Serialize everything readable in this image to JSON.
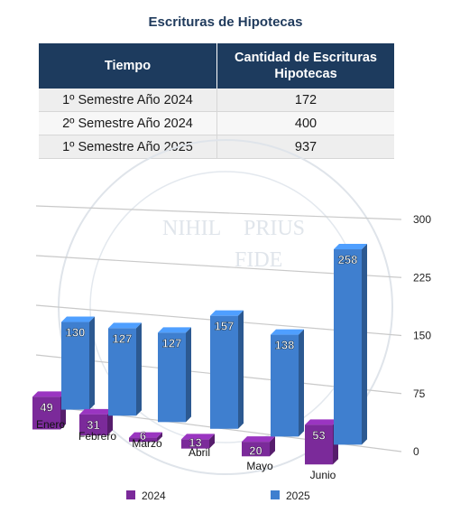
{
  "title": "Escrituras de Hipotecas",
  "table": {
    "headers": [
      "Tiempo",
      "Cantidad de Escrituras Hipotecas"
    ],
    "rows": [
      [
        "1º Semestre Año 2024",
        "172"
      ],
      [
        "2º Semestre Año 2024",
        "400"
      ],
      [
        "1º Semestre Año 2025",
        "937"
      ]
    ]
  },
  "watermark_text": [
    "NIHIL",
    "PRIUS",
    "FIDE"
  ],
  "chart_data": {
    "type": "bar",
    "categories": [
      "Enero",
      "Febrero",
      "Marzo",
      "Abril",
      "Mayo",
      "Junio"
    ],
    "series": [
      {
        "name": "2024",
        "values": [
          49,
          31,
          6,
          13,
          20,
          53
        ],
        "color": "#7b2a9a"
      },
      {
        "name": "2025",
        "values": [
          130,
          127,
          127,
          157,
          138,
          258
        ],
        "color": "#3f7fcf"
      }
    ],
    "y_ticks": [
      "0",
      "75",
      "150",
      "225",
      "300"
    ],
    "ylim": [
      0,
      300
    ],
    "legend_position": "bottom"
  }
}
